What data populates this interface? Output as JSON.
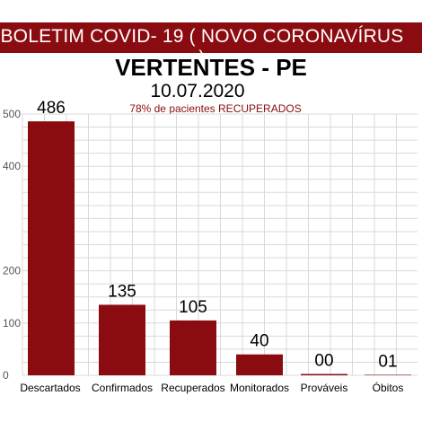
{
  "banner": "BOLETIM COVID- 19 ( NOVO CORONAVÍRUS )",
  "title": "VERTENTES - PE",
  "date": "10.07.2020",
  "subtitle": "78% de pacientes RECUPERADOS",
  "colors": {
    "bar": "#8b0c10",
    "banner": "#8b0c10",
    "grid": "#d9d9d9",
    "text": "#000000"
  },
  "chart_data": {
    "type": "bar",
    "categories": [
      "Descartados",
      "Confirmados",
      "Recuperados",
      "Monitorados",
      "Prováveis",
      "Óbitos"
    ],
    "values": [
      486,
      135,
      105,
      40,
      0,
      1
    ],
    "data_labels": [
      "486",
      "135",
      "105",
      "40",
      "00",
      "01"
    ],
    "ylim": [
      0,
      500
    ],
    "yticks": [
      0,
      100,
      200,
      400,
      500
    ],
    "ytick_labels": [
      "0",
      "100",
      "200",
      "400",
      "500"
    ],
    "grid": true,
    "xlabel": "",
    "ylabel": ""
  }
}
